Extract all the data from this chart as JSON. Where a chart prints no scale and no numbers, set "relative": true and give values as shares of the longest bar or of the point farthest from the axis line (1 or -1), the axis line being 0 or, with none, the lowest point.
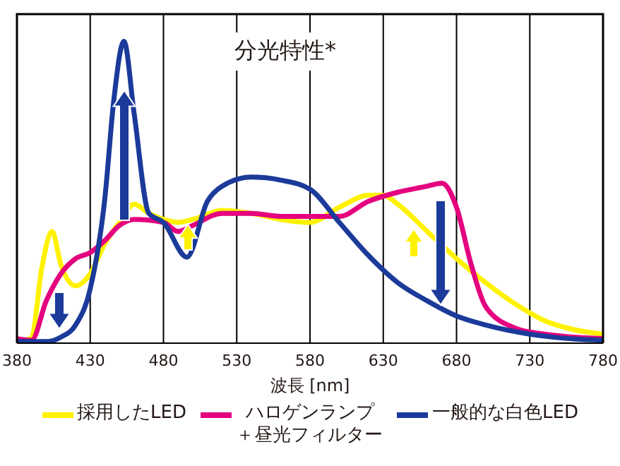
{
  "chart_data": {
    "type": "line",
    "title": "分光特性*",
    "xlabel": "波長 [nm]",
    "relative": true,
    "xlim": [
      380,
      780
    ],
    "xticks": [
      380,
      430,
      480,
      530,
      580,
      630,
      680,
      730,
      780
    ],
    "grid": "x",
    "legend": "bottom",
    "marker": "none",
    "line_style": "solid",
    "series": [
      {
        "name": "採用したLED",
        "color": "#fff200",
        "x": [
          380,
          390,
          397,
          404,
          410,
          420,
          430,
          440,
          450,
          460,
          470,
          480,
          490,
          500,
          520,
          540,
          560,
          580,
          600,
          620,
          630,
          640,
          660,
          680,
          700,
          720,
          740,
          760,
          780
        ],
        "values": [
          0,
          0.02,
          0.25,
          0.37,
          0.26,
          0.19,
          0.23,
          0.33,
          0.4,
          0.46,
          0.43,
          0.41,
          0.4,
          0.41,
          0.44,
          0.43,
          0.41,
          0.4,
          0.45,
          0.49,
          0.49,
          0.46,
          0.37,
          0.28,
          0.2,
          0.13,
          0.075,
          0.045,
          0.03
        ]
      },
      {
        "name": "ハロゲンランプ＋昼光フィルター",
        "color": "#e4007f",
        "x": [
          380,
          390,
          400,
          410,
          420,
          430,
          440,
          450,
          460,
          480,
          490,
          500,
          520,
          540,
          560,
          580,
          600,
          620,
          640,
          660,
          670,
          680,
          690,
          700,
          720,
          740,
          760,
          780
        ],
        "values": [
          0.015,
          0.01,
          0.14,
          0.23,
          0.28,
          0.3,
          0.34,
          0.39,
          0.41,
          0.4,
          0.37,
          0.39,
          0.43,
          0.43,
          0.42,
          0.42,
          0.42,
          0.47,
          0.5,
          0.52,
          0.53,
          0.45,
          0.26,
          0.12,
          0.05,
          0.03,
          0.02,
          0.015
        ]
      },
      {
        "name": "一般的な白色LED",
        "color": "#1b3a9a",
        "x": [
          380,
          400,
          410,
          420,
          430,
          440,
          446,
          453,
          460,
          470,
          480,
          496,
          510,
          520,
          540,
          560,
          580,
          600,
          620,
          640,
          660,
          680,
          700,
          730,
          760,
          780
        ],
        "values": [
          0.005,
          0.005,
          0.02,
          0.06,
          0.18,
          0.48,
          0.8,
          1,
          0.76,
          0.43,
          0.4,
          0.285,
          0.47,
          0.52,
          0.55,
          0.54,
          0.51,
          0.4,
          0.29,
          0.2,
          0.14,
          0.09,
          0.06,
          0.03,
          0.014,
          0.01
        ]
      }
    ]
  }
}
